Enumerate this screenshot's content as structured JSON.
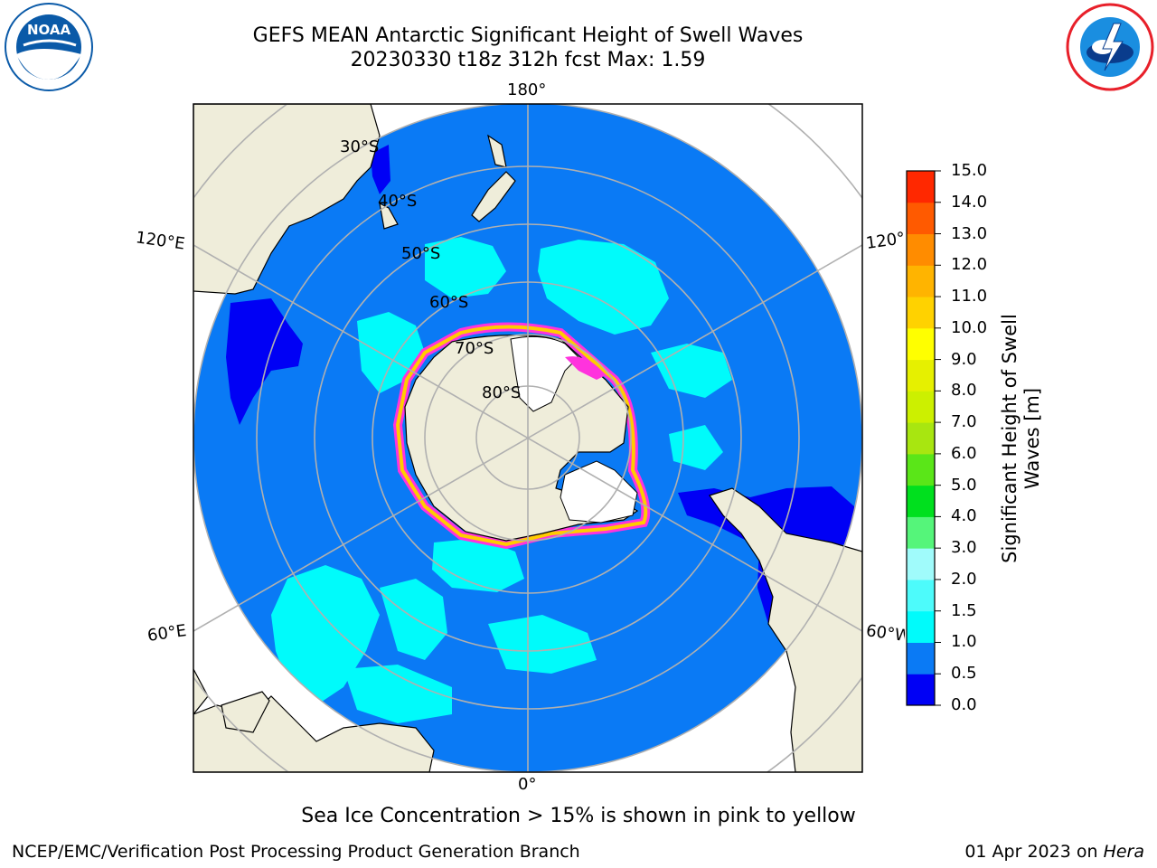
{
  "title": {
    "line1": "GEFS MEAN Antarctic Significant Height of Swell Waves",
    "line2": "20230330 t18z 312h fcst   Max: 1.59"
  },
  "logos": {
    "left": {
      "icon": "noaa-logo",
      "text": "NOAA",
      "ring_text": "NATIONAL OCEANIC AND ATMOSPHERIC ADMINISTRATION · U.S. DEPARTMENT OF COMMERCE",
      "color": "#0a5aa8"
    },
    "right": {
      "icon": "nws-logo",
      "ring_text": "NATIONAL WEATHER SERVICE",
      "color": "#e8202a"
    }
  },
  "map": {
    "projection": "south-polar-stereographic",
    "longitude_labels": {
      "top": "180°",
      "bottom": "0°",
      "left_upper": "120°E",
      "left_lower": "60°E",
      "right_upper": "120°W",
      "right_lower": "60°W"
    },
    "latitude_labels": [
      "30°S",
      "40°S",
      "50°S",
      "60°S",
      "70°S",
      "80°S"
    ],
    "colors": {
      "land": "#efedda",
      "ocean_low": "#0a7af5",
      "ocean_lowest": "#0000f5",
      "swell_mid": "#00fbfb",
      "ice_pink": "#ff33dd",
      "ice_yellow": "#ffcc00",
      "grid": "#b0b0b0"
    }
  },
  "colorbar": {
    "title": "Significant Height of Swell Waves [m]",
    "ticks": [
      "0.0",
      "0.5",
      "1.0",
      "1.5",
      "2.0",
      "3.0",
      "4.0",
      "5.0",
      "6.0",
      "7.0",
      "8.0",
      "9.0",
      "10.0",
      "11.0",
      "12.0",
      "13.0",
      "14.0",
      "15.0"
    ],
    "colors": [
      "#0000f5",
      "#0a7af5",
      "#00fbfb",
      "#4dfbfb",
      "#a0fbfb",
      "#55f57a",
      "#00e01e",
      "#5ae618",
      "#a8e610",
      "#ccf000",
      "#e6f000",
      "#ffff00",
      "#ffd200",
      "#ffb400",
      "#ff8c00",
      "#ff5a00",
      "#ff2800"
    ]
  },
  "caption": "Sea Ice Concentration > 15% is shown in pink to yellow",
  "footer": {
    "left": "NCEP/EMC/Verification Post Processing Product Generation Branch",
    "right_prefix": "01 Apr 2023 on ",
    "right_host": "Hera"
  }
}
